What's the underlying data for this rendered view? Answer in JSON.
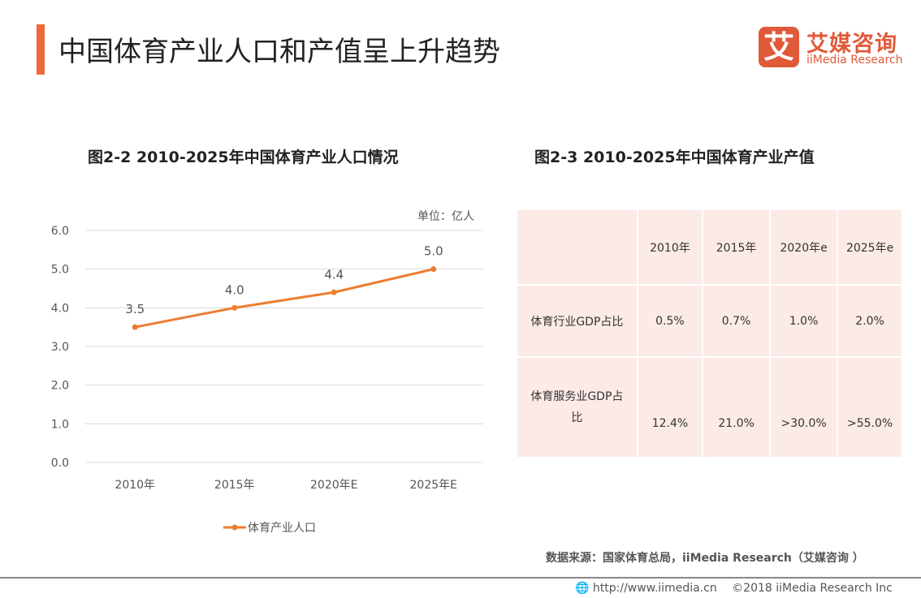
{
  "header": {
    "title": "中国体育产业人口和产值呈上升趋势",
    "accent": "#EF6A3A"
  },
  "logo": {
    "mark": "艾",
    "cn": "艾媒咨询",
    "en": "iiMedia Research"
  },
  "chart_data": [
    {
      "type": "line",
      "title": "图2-2 2010-2025年中国体育产业人口情况",
      "unit": "单位：亿人",
      "categories": [
        "2010年",
        "2015年",
        "2020年E",
        "2025年E"
      ],
      "series": [
        {
          "name": "体育产业人口",
          "values": [
            3.5,
            4.0,
            4.4,
            5.0
          ],
          "color": "#ED7D31"
        }
      ],
      "data_labels": [
        "3.5",
        "4.0",
        "4.4",
        "5.0"
      ],
      "ylim": [
        0,
        6
      ],
      "yticks": [
        "0.0",
        "1.0",
        "2.0",
        "3.0",
        "4.0",
        "5.0",
        "6.0"
      ],
      "grid": true,
      "legend": "bottom"
    },
    {
      "type": "table",
      "title": "图2-3 2010-2025年中国体育产业产值",
      "columns": [
        "",
        "2010年",
        "2015年",
        "2020年e",
        "2025年e"
      ],
      "rows": [
        [
          "体育行业GDP占比",
          "0.5%",
          "0.7%",
          "1.0%",
          "2.0%"
        ],
        [
          "体育服务业GDP占比",
          "12.4%",
          "21.0%",
          ">30.0%",
          ">55.0%"
        ]
      ]
    }
  ],
  "source": "数据来源：国家体育总局，iiMedia  Research（艾媒咨询 ）",
  "footer": {
    "url": "http://www.iimedia.cn",
    "copyright": "©2018  iiMedia Research  Inc"
  }
}
